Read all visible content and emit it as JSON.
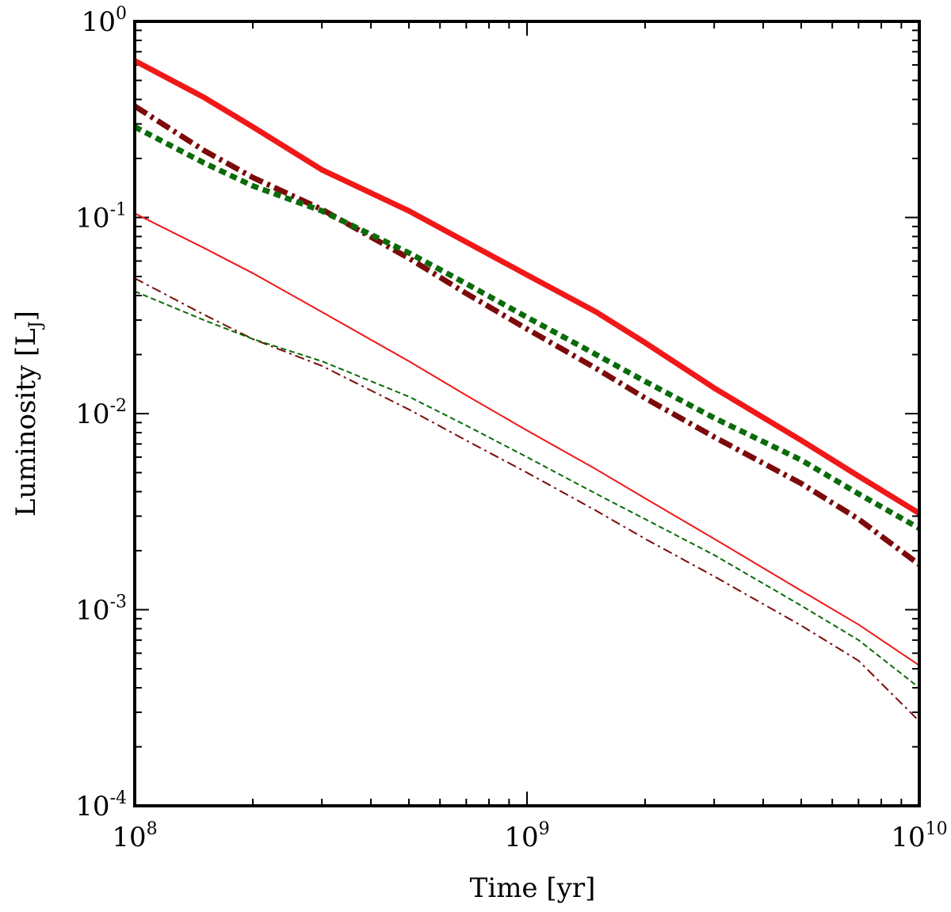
{
  "chart_data": {
    "type": "line",
    "title": "",
    "xlabel": "Time [yr]",
    "ylabel": "Luminosity [L",
    "ylabel_subscript": "J",
    "ylabel_close": "]",
    "xscale": "log",
    "yscale": "log",
    "xlim": [
      100000000,
      10000000000
    ],
    "ylim": [
      0.0001,
      1
    ],
    "x_ticks": [
      {
        "value": 100000000,
        "base": "10",
        "exp": "8"
      },
      {
        "value": 1000000000,
        "base": "10",
        "exp": "9"
      },
      {
        "value": 10000000000,
        "base": "10",
        "exp": "10"
      }
    ],
    "y_ticks": [
      {
        "value": 0.0001,
        "base": "10",
        "exp": "-4"
      },
      {
        "value": 0.001,
        "base": "10",
        "exp": "-3"
      },
      {
        "value": 0.01,
        "base": "10",
        "exp": "-2"
      },
      {
        "value": 0.1,
        "base": "10",
        "exp": "-1"
      },
      {
        "value": 1,
        "base": "10",
        "exp": "0"
      }
    ],
    "legend": "none",
    "x": [
      100000000,
      150000000,
      200000000,
      300000000,
      500000000,
      700000000,
      1000000000,
      1500000000,
      2000000000,
      3000000000,
      5000000000,
      7000000000,
      10000000000
    ],
    "series": [
      {
        "name": "thick-solid-red",
        "color": "#f01818",
        "style": "solid",
        "weight": "thick",
        "values": [
          0.63,
          0.41,
          0.29,
          0.175,
          0.108,
          0.075,
          0.051,
          0.033,
          0.023,
          0.0135,
          0.0073,
          0.0048,
          0.0031
        ]
      },
      {
        "name": "thick-dashdot-darkred",
        "color": "#7c0a0a",
        "style": "dashdot",
        "weight": "thick",
        "values": [
          0.37,
          0.22,
          0.16,
          0.11,
          0.062,
          0.041,
          0.027,
          0.017,
          0.012,
          0.0076,
          0.0044,
          0.0029,
          0.0017
        ]
      },
      {
        "name": "thick-dashed-green",
        "color": "#0a6b0a",
        "style": "dashed",
        "weight": "thick",
        "values": [
          0.29,
          0.19,
          0.145,
          0.108,
          0.066,
          0.046,
          0.031,
          0.02,
          0.0146,
          0.0095,
          0.0058,
          0.0039,
          0.0026
        ]
      },
      {
        "name": "thin-solid-red",
        "color": "#f01818",
        "style": "solid",
        "weight": "thin",
        "values": [
          0.105,
          0.07,
          0.052,
          0.033,
          0.0185,
          0.0124,
          0.0082,
          0.0052,
          0.0037,
          0.0023,
          0.00125,
          0.00084,
          0.00052
        ]
      },
      {
        "name": "thin-dashdot-darkred",
        "color": "#7c0a0a",
        "style": "dashdot",
        "weight": "thin",
        "values": [
          0.049,
          0.032,
          0.024,
          0.0175,
          0.0105,
          0.0073,
          0.005,
          0.0032,
          0.0023,
          0.00148,
          0.00083,
          0.00055,
          0.00027
        ]
      },
      {
        "name": "thin-dashed-green",
        "color": "#0a6b0a",
        "style": "dashed",
        "weight": "thin",
        "values": [
          0.042,
          0.03,
          0.024,
          0.0185,
          0.0122,
          0.0087,
          0.006,
          0.0039,
          0.0029,
          0.0019,
          0.00105,
          0.0007,
          0.0004
        ]
      }
    ]
  }
}
